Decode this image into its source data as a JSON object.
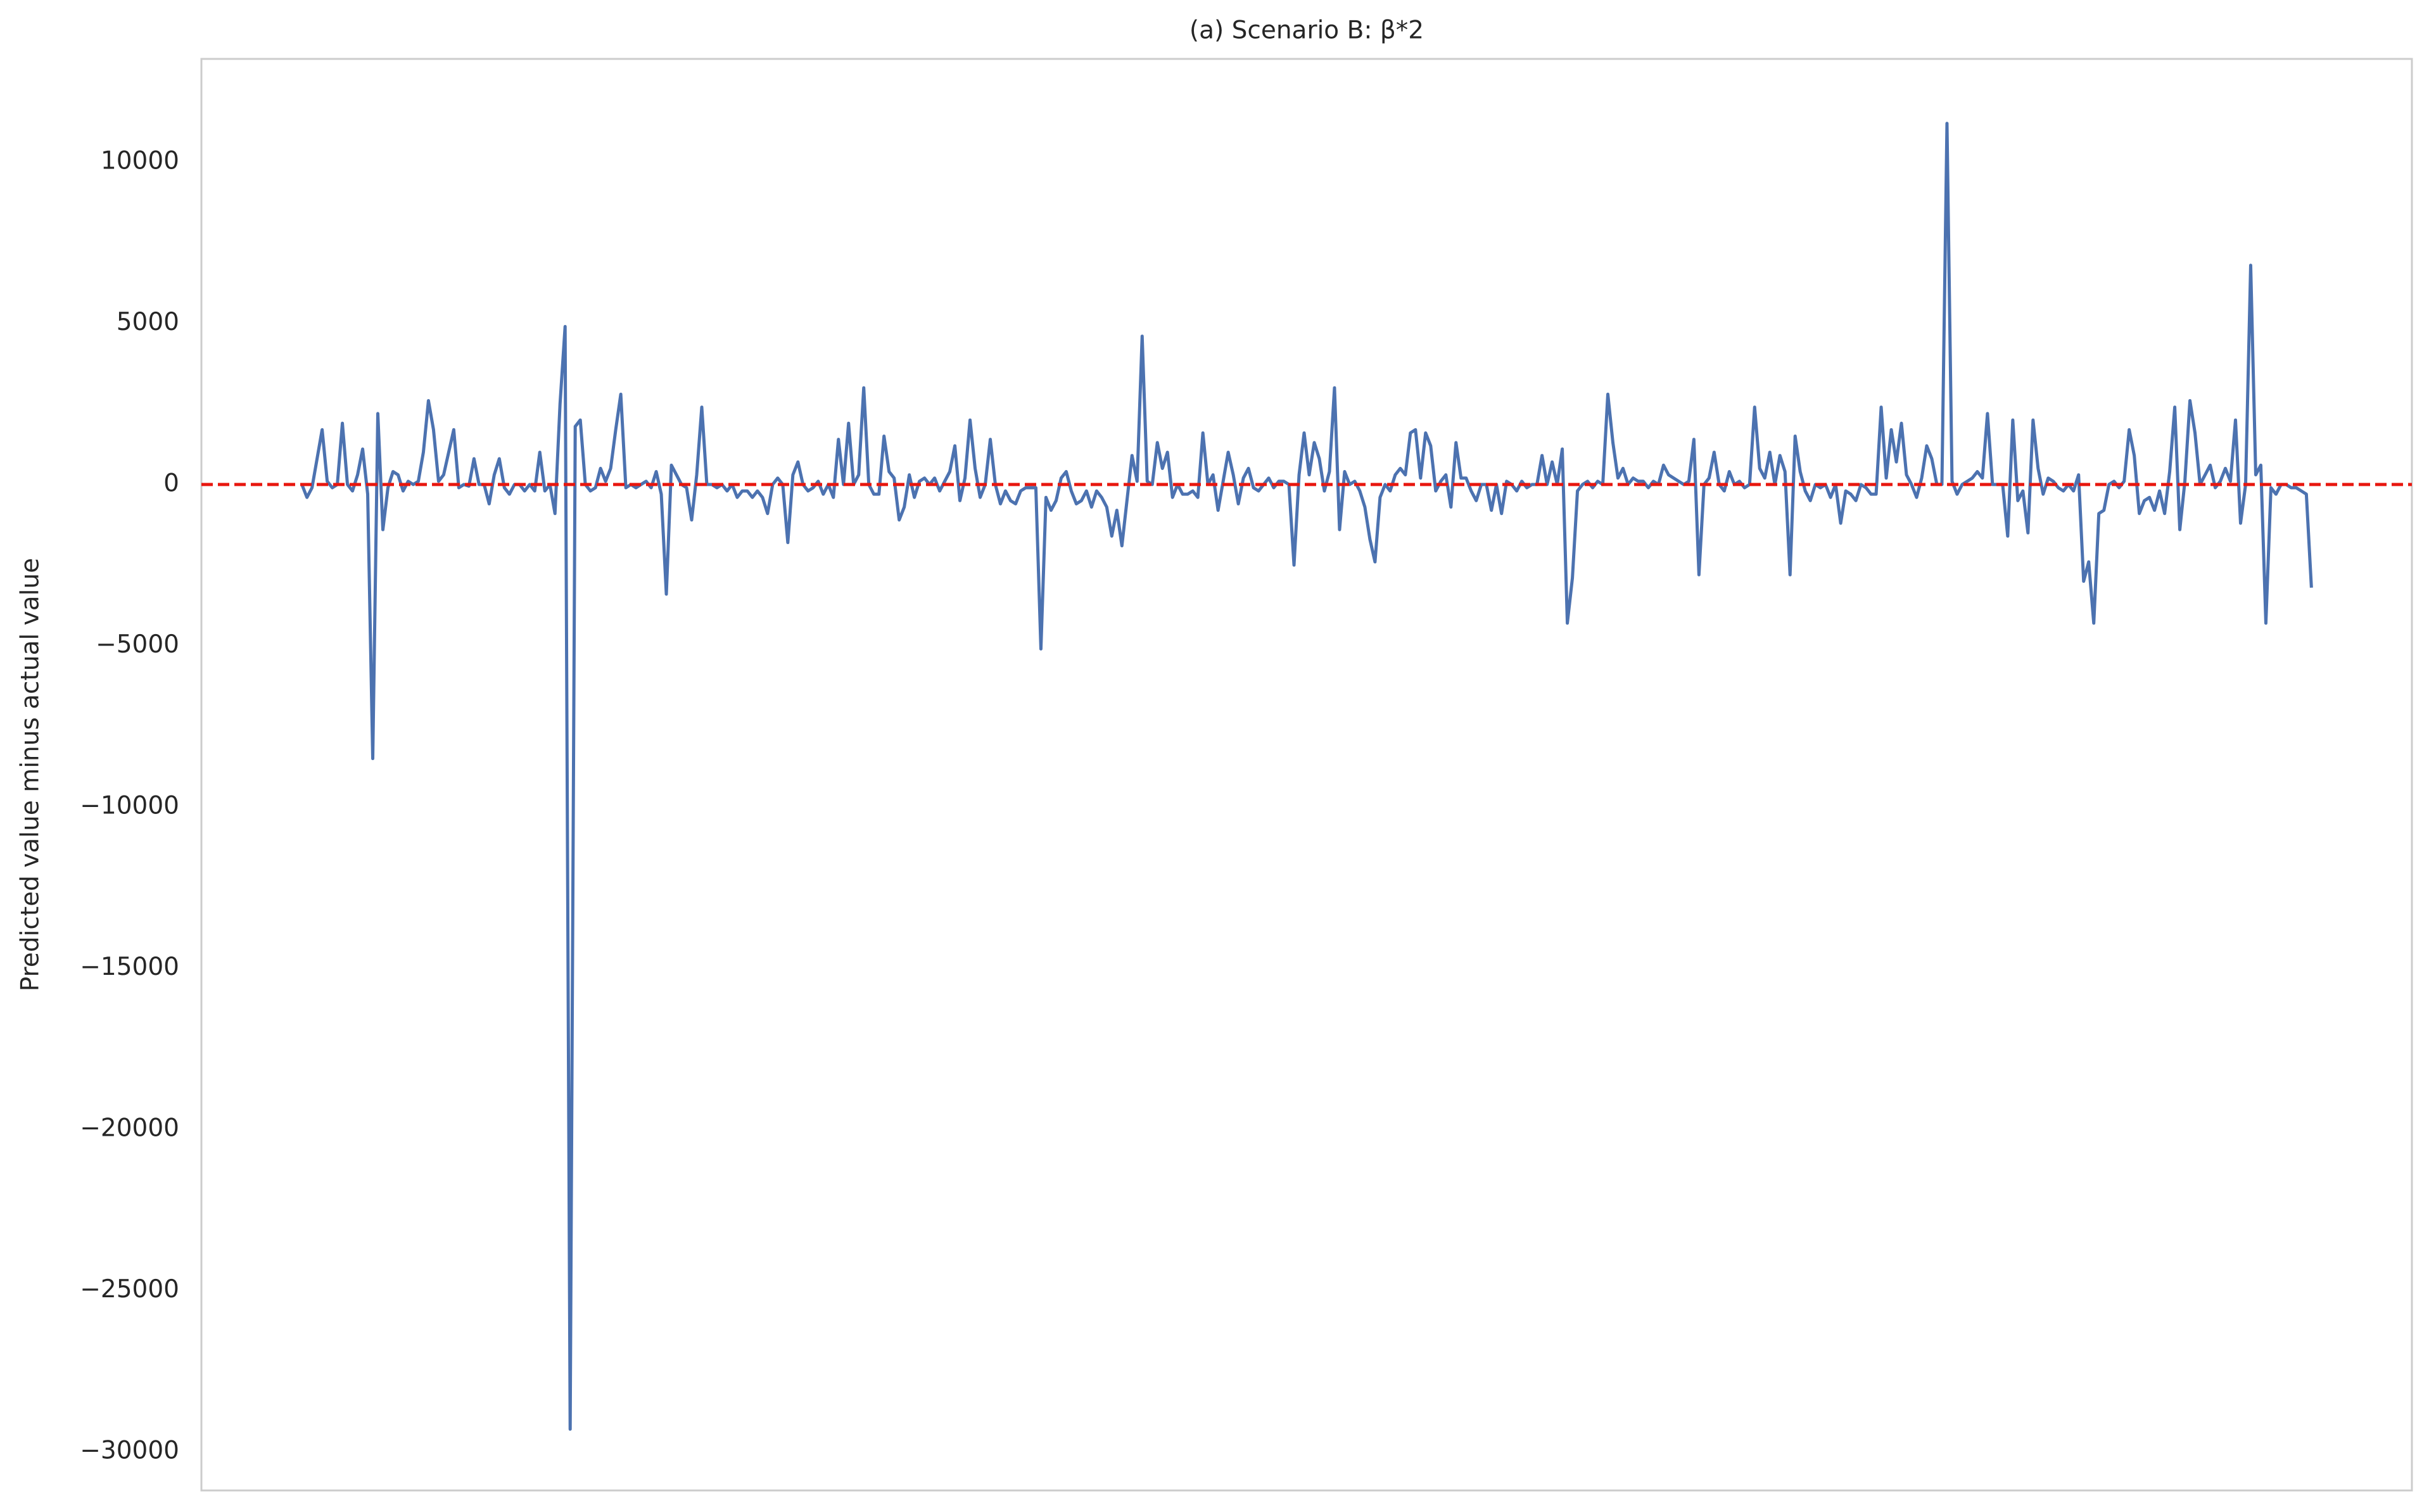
{
  "chart_data": {
    "type": "line",
    "title": "(a) Scenario B: β*2",
    "ylabel": "Predicted value minus actual value",
    "ylim": [
      -31200,
      13200
    ],
    "yticks": [
      {
        "value": -30000,
        "label": "−30000"
      },
      {
        "value": -25000,
        "label": "−25000"
      },
      {
        "value": -20000,
        "label": "−20000"
      },
      {
        "value": -15000,
        "label": "−15000"
      },
      {
        "value": -10000,
        "label": "−10000"
      },
      {
        "value": -5000,
        "label": "−5000"
      },
      0,
      5000,
      10000
    ],
    "grid": false,
    "reference_line": {
      "value": 0,
      "color": "#e8170f"
    },
    "series": [
      {
        "color": "#4c72b0",
        "values": [
          0,
          -400,
          -100,
          800,
          1700,
          100,
          -100,
          0,
          1900,
          0,
          -200,
          300,
          1100,
          -300,
          -8500,
          2200,
          -1400,
          -100,
          400,
          300,
          -200,
          100,
          0,
          100,
          1000,
          2600,
          1700,
          100,
          300,
          1000,
          1700,
          -100,
          0,
          -50,
          800,
          0,
          0,
          -600,
          300,
          800,
          -100,
          -300,
          0,
          0,
          -200,
          0,
          -200,
          1000,
          -200,
          0,
          -900,
          2500,
          4900,
          -29300,
          1800,
          2000,
          0,
          -200,
          -100,
          500,
          100,
          500,
          1700,
          2800,
          -100,
          0,
          -100,
          0,
          100,
          -100,
          400,
          -300,
          -3400,
          600,
          300,
          0,
          -100,
          -1100,
          300,
          2400,
          0,
          0,
          -100,
          0,
          -200,
          0,
          -400,
          -200,
          -200,
          -400,
          -200,
          -400,
          -900,
          0,
          200,
          0,
          -1800,
          300,
          700,
          0,
          -200,
          -100,
          100,
          -300,
          0,
          -400,
          1400,
          0,
          1900,
          0,
          300,
          3000,
          0,
          -300,
          -300,
          1500,
          400,
          200,
          -1100,
          -700,
          300,
          -400,
          100,
          200,
          0,
          200,
          -200,
          100,
          400,
          1200,
          -500,
          200,
          2000,
          500,
          -400,
          0,
          1400,
          0,
          -600,
          -200,
          -500,
          -600,
          -200,
          -100,
          -100,
          -100,
          -5100,
          -400,
          -800,
          -500,
          200,
          400,
          -200,
          -600,
          -500,
          -200,
          -700,
          -200,
          -400,
          -700,
          -1600,
          -800,
          -1900,
          -500,
          900,
          100,
          4600,
          100,
          0,
          1300,
          500,
          1000,
          -400,
          0,
          -300,
          -300,
          -200,
          -400,
          1600,
          0,
          300,
          -800,
          100,
          1000,
          300,
          -600,
          200,
          500,
          -100,
          -200,
          0,
          200,
          -100,
          100,
          100,
          0,
          -2500,
          300,
          1600,
          300,
          1300,
          800,
          -200,
          400,
          3000,
          -1400,
          400,
          0,
          100,
          -200,
          -700,
          -1700,
          -2400,
          -400,
          0,
          -200,
          300,
          500,
          300,
          1600,
          1700,
          200,
          1600,
          1200,
          -200,
          100,
          300,
          -700,
          1300,
          200,
          200,
          -200,
          -500,
          0,
          0,
          -800,
          0,
          -900,
          100,
          0,
          -200,
          100,
          -100,
          0,
          0,
          900,
          0,
          700,
          0,
          1100,
          -4300,
          -2900,
          -200,
          0,
          100,
          -100,
          100,
          0,
          2800,
          1300,
          200,
          500,
          0,
          200,
          100,
          100,
          -100,
          100,
          0,
          600,
          300,
          200,
          100,
          0,
          100,
          1400,
          -2800,
          0,
          200,
          1000,
          0,
          -200,
          400,
          0,
          100,
          -100,
          0,
          2400,
          500,
          200,
          1000,
          0,
          900,
          400,
          -2800,
          1500,
          400,
          -200,
          -500,
          0,
          -100,
          0,
          -400,
          0,
          -1200,
          -200,
          -300,
          -500,
          0,
          -100,
          -300,
          -300,
          2400,
          200,
          1700,
          700,
          1900,
          300,
          0,
          -400,
          200,
          1200,
          800,
          0,
          0,
          11200,
          100,
          -300,
          0,
          100,
          200,
          400,
          200,
          2200,
          0,
          0,
          0,
          -1600,
          2000,
          -500,
          -200,
          -1500,
          2000,
          500,
          -300,
          200,
          100,
          -100,
          -200,
          0,
          -200,
          300,
          -3000,
          -2400,
          -4300,
          -900,
          -800,
          0,
          100,
          -100,
          100,
          1700,
          900,
          -900,
          -500,
          -400,
          -800,
          -200,
          -900,
          400,
          2400,
          -1400,
          100,
          2600,
          1600,
          0,
          300,
          600,
          -100,
          100,
          500,
          100,
          2000,
          -1200,
          0,
          6800,
          300,
          600,
          -4300,
          -100,
          -300,
          0,
          0,
          -100,
          -100,
          -200,
          -300,
          -3200
        ]
      }
    ]
  }
}
